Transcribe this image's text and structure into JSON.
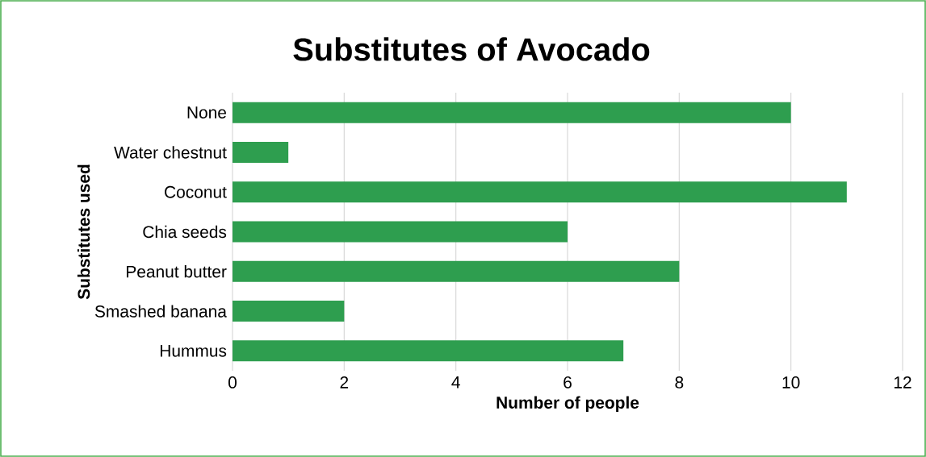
{
  "chart_data": {
    "type": "bar",
    "orientation": "horizontal",
    "title": "Substitutes of Avocado",
    "xlabel": "Number of people",
    "ylabel": "Substitutes used",
    "categories": [
      "None",
      "Water chestnut",
      "Coconut",
      "Chia seeds",
      "Peanut butter",
      "Smashed banana",
      "Hummus"
    ],
    "values": [
      10,
      1,
      11,
      6,
      8,
      2,
      7
    ],
    "color": "#2e9e4f",
    "xlim": [
      0,
      12
    ],
    "xticks": [
      0,
      2,
      4,
      6,
      8,
      10,
      12
    ],
    "grid": "x"
  }
}
